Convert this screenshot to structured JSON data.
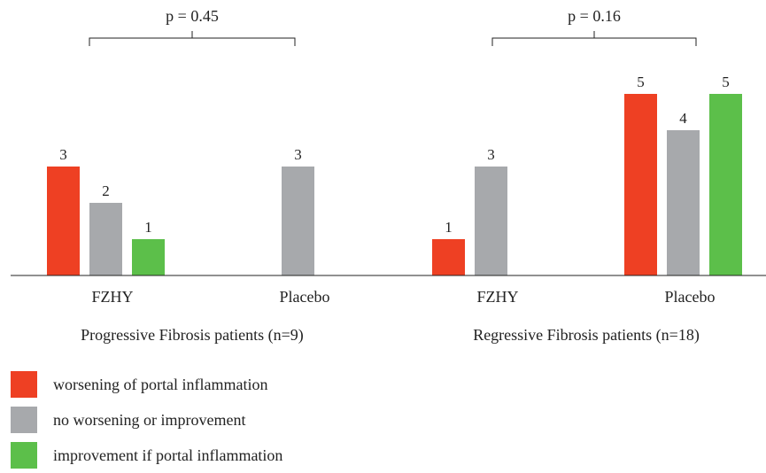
{
  "chart_data": {
    "type": "bar",
    "groups": [
      {
        "label": "Progressive Fibrosis patients (n=9)",
        "p_value": "p = 0.45",
        "treatments": [
          {
            "label": "FZHY",
            "values": [
              3,
              2,
              1
            ]
          },
          {
            "label": "Placebo",
            "values": [
              0,
              3,
              0
            ]
          }
        ]
      },
      {
        "label": "Regressive Fibrosis patients (n=18)",
        "p_value": "p = 0.16",
        "treatments": [
          {
            "label": "FZHY",
            "values": [
              1,
              3,
              0
            ]
          },
          {
            "label": "Placebo",
            "values": [
              5,
              4,
              5
            ]
          }
        ]
      }
    ],
    "series": [
      {
        "name": "worsening of portal inflammation",
        "color": "#ee4023"
      },
      {
        "name": "no worsening or improvement",
        "color": "#a7a9ac"
      },
      {
        "name": "improvement if portal inflammation",
        "color": "#5cbf4a"
      }
    ],
    "ylim": [
      0,
      5
    ],
    "grid": false,
    "legend_position": "bottom-left"
  }
}
